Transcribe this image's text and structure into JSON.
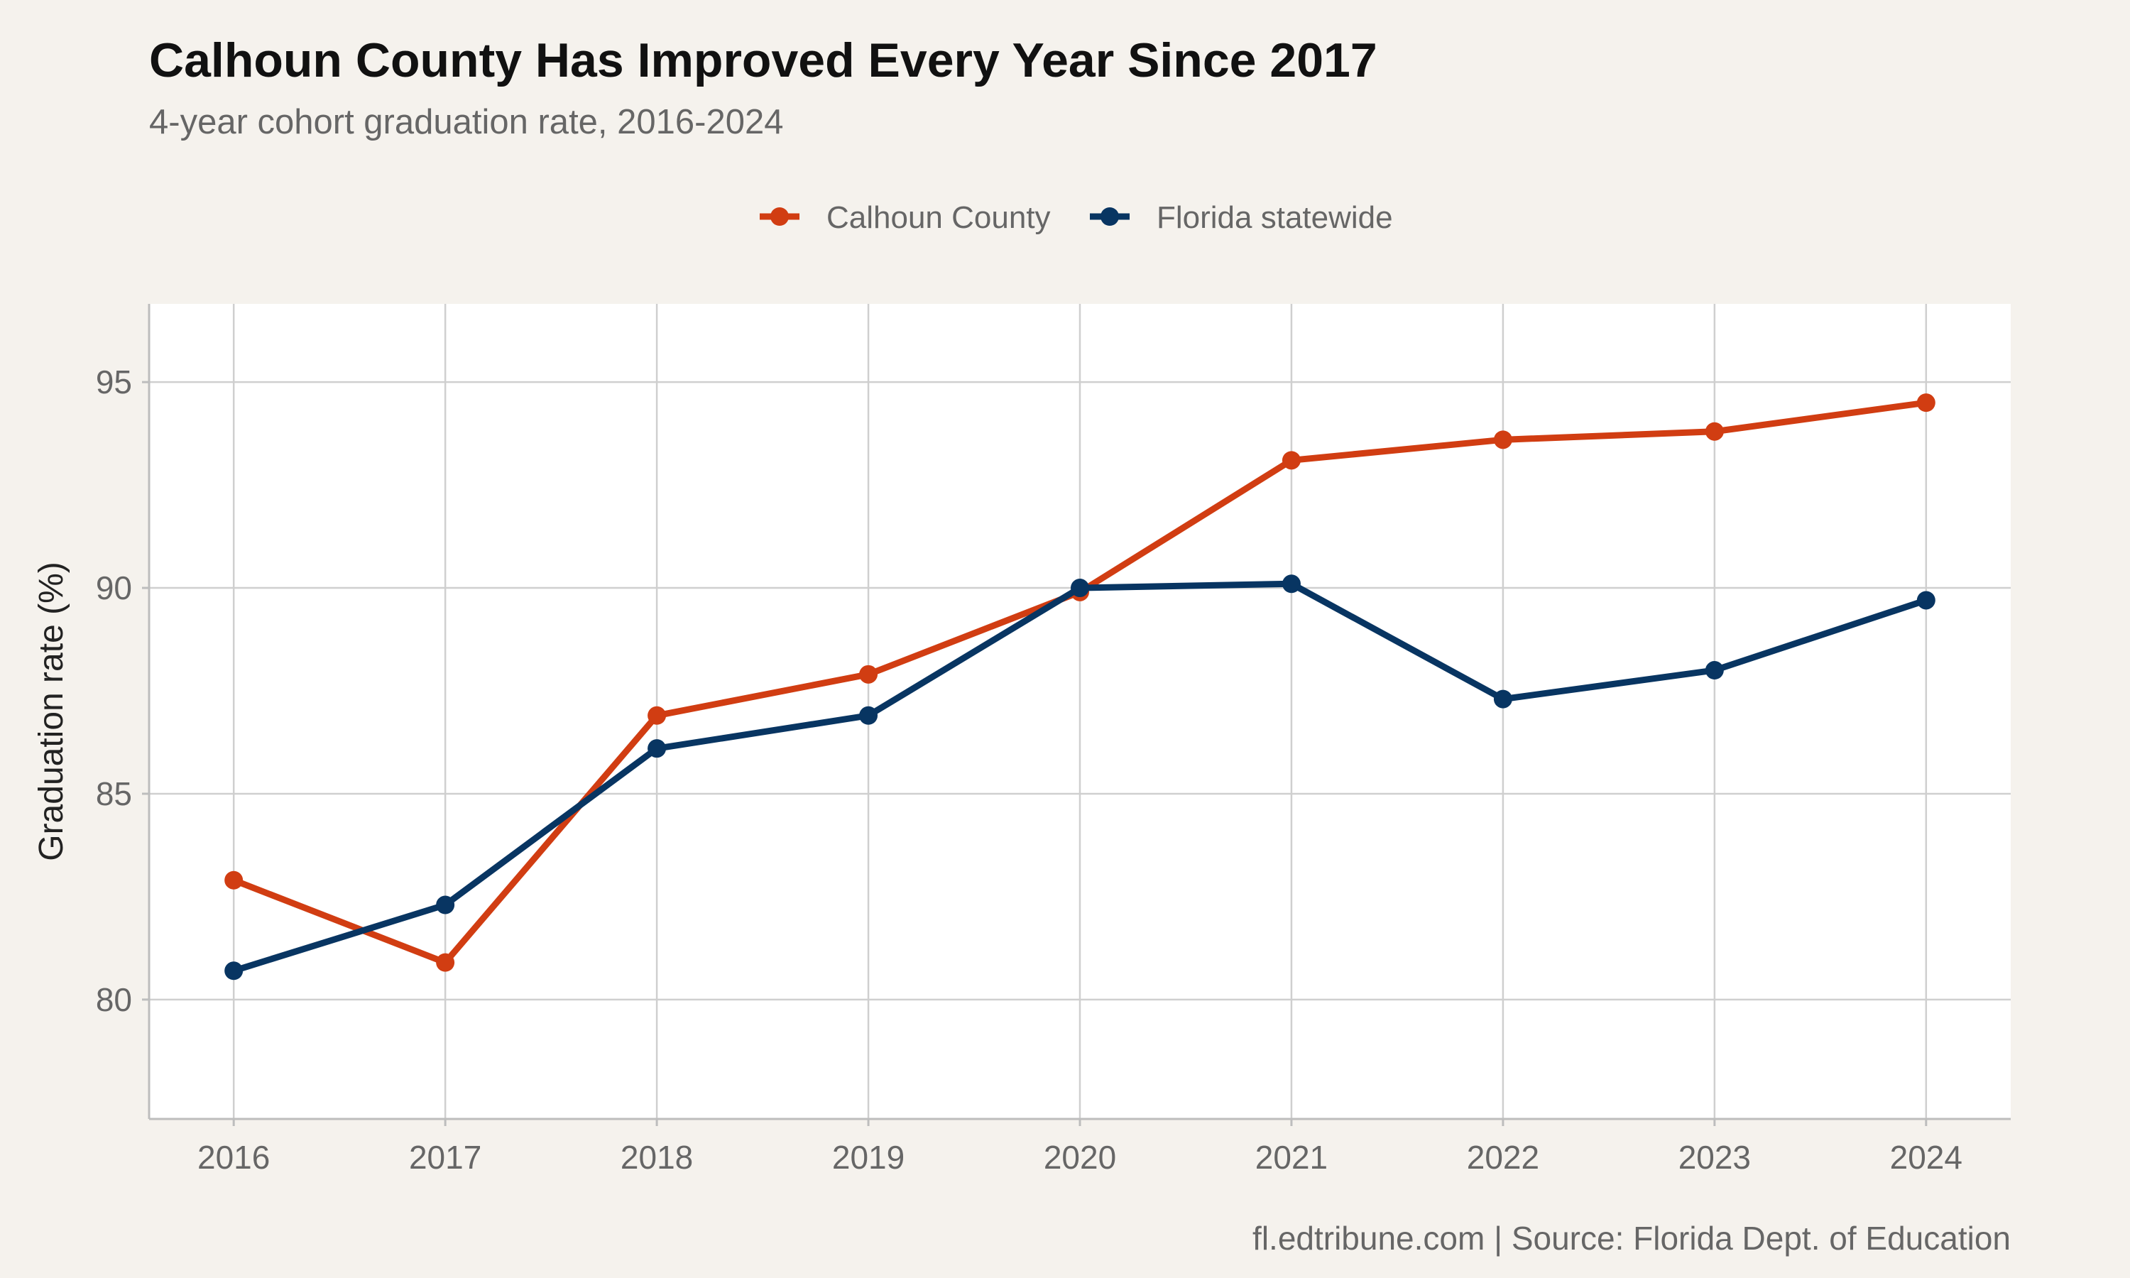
{
  "chart_data": {
    "type": "line",
    "title": "Calhoun County Has Improved Every Year Since 2017",
    "subtitle": "4-year cohort graduation rate, 2016-2024",
    "xlabel": "",
    "ylabel": "Graduation rate (%)",
    "caption": "fl.edtribune.com | Source: Florida Dept. of Education",
    "x": [
      2016,
      2017,
      2018,
      2019,
      2020,
      2021,
      2022,
      2023,
      2024
    ],
    "x_tick_labels": [
      "2016",
      "2017",
      "2018",
      "2019",
      "2020",
      "2021",
      "2022",
      "2023",
      "2024"
    ],
    "y_ticks": [
      80,
      85,
      90,
      95
    ],
    "y_tick_labels": [
      "80",
      "85",
      "90",
      "95"
    ],
    "xlim": [
      2015.6,
      2024.4
    ],
    "ylim": [
      77.1,
      96.9
    ],
    "grid": true,
    "legend_position": "top",
    "series": [
      {
        "name": "Calhoun County",
        "color": "#d13d12",
        "values": [
          82.9,
          80.9,
          86.9,
          87.9,
          89.9,
          93.1,
          93.6,
          93.8,
          94.5
        ]
      },
      {
        "name": "Florida statewide",
        "color": "#083562",
        "values": [
          80.7,
          82.3,
          86.1,
          86.9,
          90.0,
          90.1,
          87.3,
          88.0,
          89.7
        ]
      }
    ]
  }
}
